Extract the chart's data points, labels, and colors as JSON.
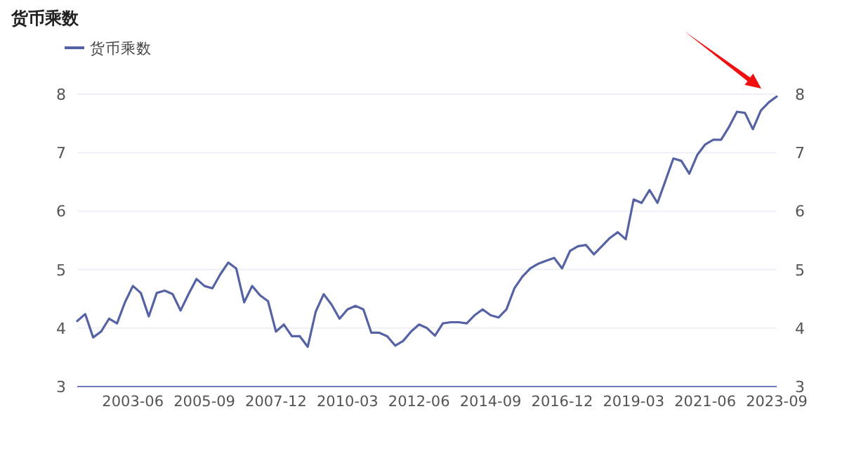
{
  "chart_data": {
    "type": "line",
    "title": "货币乘数",
    "categories": [
      null,
      null,
      null,
      null,
      null,
      null,
      null,
      "2003-06",
      null,
      null,
      null,
      null,
      null,
      null,
      null,
      null,
      "2005-09",
      null,
      null,
      null,
      null,
      null,
      null,
      null,
      null,
      "2007-12",
      null,
      null,
      null,
      null,
      null,
      null,
      null,
      null,
      "2010-03",
      null,
      null,
      null,
      null,
      null,
      null,
      null,
      null,
      "2012-06",
      null,
      null,
      null,
      null,
      null,
      null,
      null,
      null,
      "2014-09",
      null,
      null,
      null,
      null,
      null,
      null,
      null,
      null,
      "2016-12",
      null,
      null,
      null,
      null,
      null,
      null,
      null,
      null,
      "2019-03",
      null,
      null,
      null,
      null,
      null,
      null,
      null,
      null,
      "2021-06",
      null,
      null,
      null,
      null,
      null,
      null,
      null,
      null,
      "2023-09"
    ],
    "series": [
      {
        "name": "货币乘数",
        "color": "#5562a3",
        "values": [
          4.12,
          4.24,
          3.84,
          3.94,
          4.16,
          4.08,
          4.44,
          4.72,
          4.6,
          4.2,
          4.6,
          4.64,
          4.58,
          4.3,
          4.58,
          4.84,
          4.72,
          4.68,
          4.92,
          5.12,
          5.02,
          4.44,
          4.72,
          4.56,
          4.46,
          3.94,
          4.06,
          3.86,
          3.86,
          3.68,
          4.28,
          4.58,
          4.4,
          4.16,
          4.32,
          4.38,
          4.32,
          3.92,
          3.92,
          3.86,
          3.7,
          3.78,
          3.94,
          4.06,
          4.0,
          3.87,
          4.08,
          4.1,
          4.1,
          4.08,
          4.22,
          4.32,
          4.22,
          4.18,
          4.32,
          4.68,
          4.88,
          5.02,
          5.1,
          5.15,
          5.2,
          5.02,
          5.32,
          5.4,
          5.42,
          5.26,
          5.4,
          5.54,
          5.64,
          5.52,
          6.2,
          6.14,
          6.36,
          6.14,
          6.52,
          6.9,
          6.86,
          6.64,
          6.96,
          7.14,
          7.22,
          7.22,
          7.44,
          7.7,
          7.68,
          7.4,
          7.72,
          7.86,
          7.96
        ]
      }
    ],
    "ylim": [
      3,
      8
    ],
    "yticks": [
      3,
      4,
      5,
      6,
      7,
      8
    ],
    "y2lim": [
      3,
      8
    ],
    "y2ticks": [
      3,
      4,
      5,
      6,
      7,
      8
    ],
    "grid": "y",
    "legend": "top left",
    "marker": "none",
    "line_style": "solid"
  }
}
